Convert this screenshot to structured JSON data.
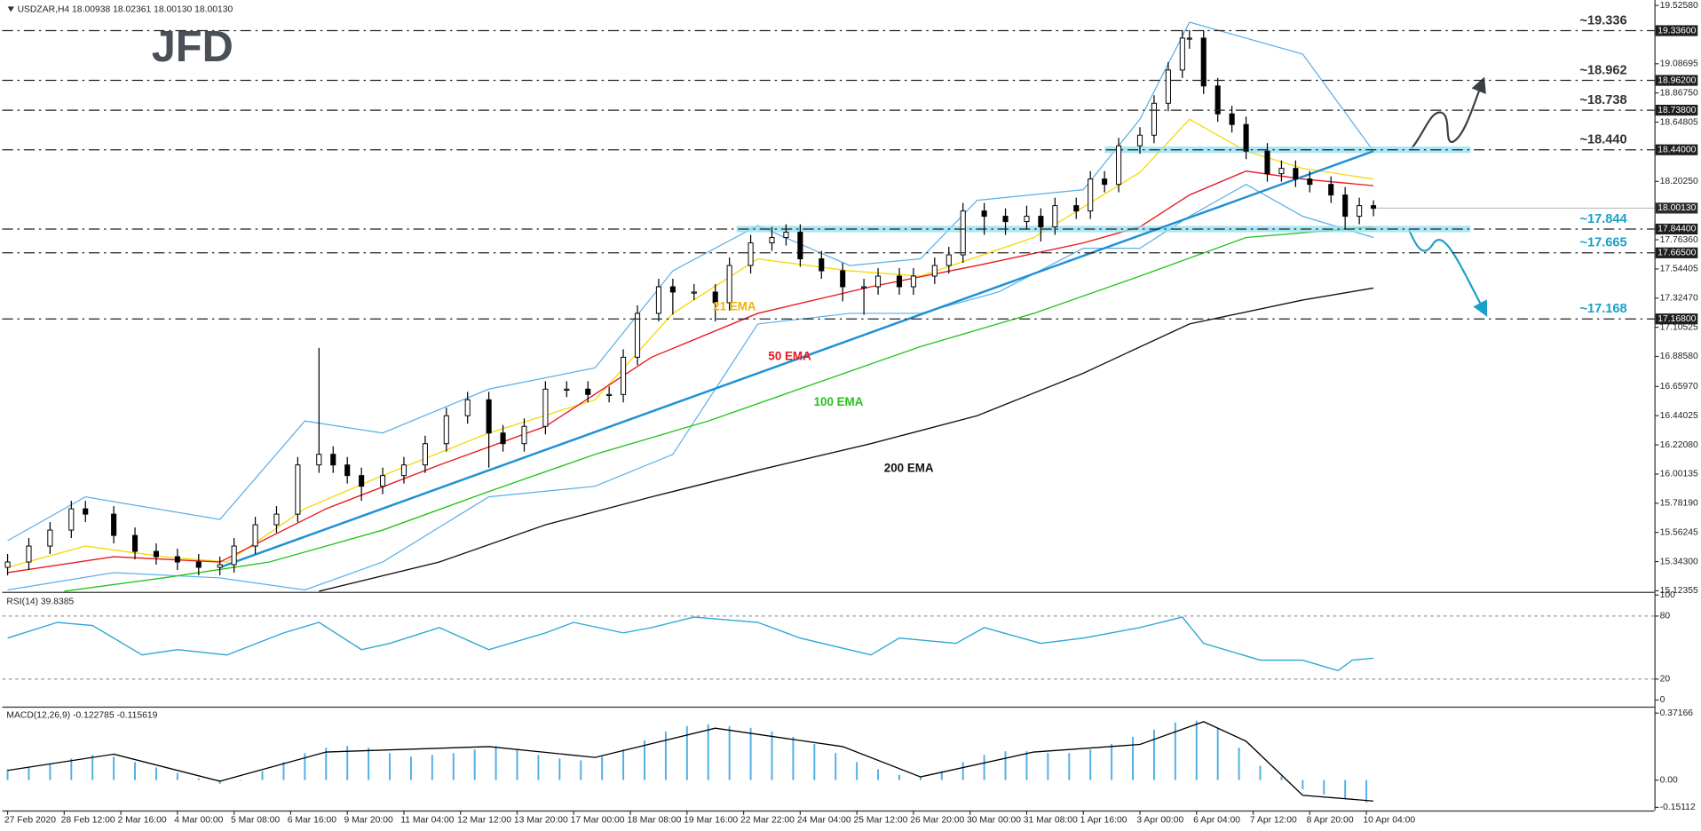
{
  "logo": "JFD",
  "chart_data": [
    {
      "type": "candlestick",
      "title": "USDZAR,H4  18.00938 18.02361 18.00130 18.00130",
      "up_color": "#ffffff",
      "down_color": "#000000",
      "xlim": [
        -0.76,
        232.7
      ],
      "ylim": [
        15.12355,
        19.5258
      ],
      "yticks": [
        {
          "value": 19.5258,
          "label": "19.52580"
        },
        {
          "value": 19.08695,
          "label": "19.08695"
        },
        {
          "value": 18.8675,
          "label": "18.86750"
        },
        {
          "value": 18.64805,
          "label": "18.64805"
        },
        {
          "value": 18.2025,
          "label": "18.20250"
        },
        {
          "value": 17.7636,
          "label": "17.76360"
        },
        {
          "value": 17.54405,
          "label": "17.54405"
        },
        {
          "value": 17.3247,
          "label": "17.32470"
        },
        {
          "value": 17.10525,
          "label": "17.10525"
        },
        {
          "value": 16.8858,
          "label": "16.88580"
        },
        {
          "value": 16.6597,
          "label": "16.65970"
        },
        {
          "value": 16.44025,
          "label": "16.44025"
        },
        {
          "value": 16.2208,
          "label": "16.22080"
        },
        {
          "value": 16.00135,
          "label": "16.00135"
        },
        {
          "value": 15.7819,
          "label": "15.78190"
        },
        {
          "value": 15.56245,
          "label": "15.56245"
        },
        {
          "value": 15.343,
          "label": "15.34300"
        },
        {
          "value": 15.12355,
          "label": "15.12355"
        }
      ],
      "x": [
        0,
        3,
        6,
        9,
        11,
        15,
        18,
        21,
        24,
        27,
        30,
        32,
        35,
        38,
        41,
        44,
        46,
        48,
        50,
        53,
        56,
        59,
        62,
        65,
        68,
        70,
        73,
        76,
        79,
        82,
        85,
        87,
        89,
        92,
        94,
        97,
        100,
        102,
        105,
        108,
        110,
        112,
        115,
        118,
        121,
        123,
        126,
        128,
        131,
        133,
        135,
        138,
        141,
        144,
        146,
        148,
        151,
        153,
        155,
        157,
        160,
        162,
        164,
        166,
        167,
        169,
        171,
        173,
        175,
        178,
        180,
        182,
        184,
        187,
        189,
        191,
        193
      ],
      "open": [
        15.3,
        15.34,
        15.46,
        15.58,
        15.74,
        15.7,
        15.54,
        15.42,
        15.38,
        15.34,
        15.3,
        15.32,
        15.46,
        15.62,
        15.7,
        16.07,
        16.15,
        16.07,
        15.99,
        15.91,
        15.99,
        16.07,
        16.23,
        16.44,
        16.56,
        16.31,
        16.23,
        16.36,
        16.64,
        16.64,
        16.6,
        16.6,
        16.88,
        17.21,
        17.41,
        17.37,
        17.37,
        17.29,
        17.57,
        17.74,
        17.78,
        17.82,
        17.62,
        17.53,
        17.41,
        17.41,
        17.49,
        17.41,
        17.49,
        17.57,
        17.65,
        17.98,
        17.94,
        17.9,
        17.94,
        17.86,
        18.02,
        17.98,
        18.22,
        18.18,
        18.47,
        18.55,
        18.79,
        19.04,
        19.28,
        19.28,
        18.92,
        18.71,
        18.63,
        18.43,
        18.26,
        18.3,
        18.22,
        18.18,
        18.1,
        17.94,
        18.02
      ],
      "high": [
        15.4,
        15.52,
        15.64,
        15.8,
        15.8,
        15.76,
        15.6,
        15.48,
        15.44,
        15.4,
        15.38,
        15.52,
        15.68,
        15.76,
        16.13,
        16.95,
        16.21,
        16.13,
        16.05,
        16.05,
        16.13,
        16.29,
        16.5,
        16.62,
        16.62,
        16.37,
        16.42,
        16.7,
        16.7,
        16.7,
        16.66,
        16.94,
        17.27,
        17.47,
        17.47,
        17.43,
        17.43,
        17.63,
        17.8,
        17.86,
        17.88,
        17.88,
        17.68,
        17.59,
        17.47,
        17.55,
        17.55,
        17.55,
        17.63,
        17.71,
        18.04,
        18.04,
        18.0,
        18.02,
        18.0,
        18.08,
        18.08,
        18.28,
        18.28,
        18.53,
        18.61,
        18.85,
        19.1,
        19.34,
        19.34,
        19.34,
        18.98,
        18.77,
        18.69,
        18.49,
        18.36,
        18.36,
        18.28,
        18.24,
        18.16,
        18.08,
        18.06
      ],
      "low": [
        15.24,
        15.28,
        15.4,
        15.52,
        15.64,
        15.48,
        15.36,
        15.32,
        15.28,
        15.24,
        15.24,
        15.26,
        15.4,
        15.56,
        15.64,
        16.01,
        16.01,
        15.93,
        15.8,
        15.85,
        15.93,
        16.01,
        16.17,
        16.38,
        16.05,
        16.17,
        16.17,
        16.3,
        16.58,
        16.54,
        16.54,
        16.54,
        16.82,
        17.15,
        17.2,
        17.31,
        17.15,
        17.23,
        17.51,
        17.68,
        17.72,
        17.56,
        17.47,
        17.3,
        17.2,
        17.35,
        17.35,
        17.35,
        17.43,
        17.51,
        17.59,
        17.8,
        17.8,
        17.84,
        17.75,
        17.8,
        17.92,
        17.92,
        18.12,
        18.12,
        18.41,
        18.49,
        18.73,
        18.98,
        19.2,
        18.86,
        18.65,
        18.57,
        18.37,
        18.2,
        18.2,
        18.16,
        18.12,
        18.04,
        17.84,
        17.88,
        17.94
      ],
      "close": [
        15.34,
        15.46,
        15.58,
        15.74,
        15.7,
        15.54,
        15.42,
        15.38,
        15.34,
        15.3,
        15.32,
        15.46,
        15.62,
        15.7,
        16.07,
        16.15,
        16.07,
        15.99,
        15.91,
        15.99,
        16.07,
        16.23,
        16.44,
        16.56,
        16.31,
        16.23,
        16.36,
        16.64,
        16.64,
        16.6,
        16.6,
        16.88,
        17.21,
        17.41,
        17.37,
        17.37,
        17.29,
        17.57,
        17.74,
        17.78,
        17.82,
        17.62,
        17.53,
        17.41,
        17.41,
        17.49,
        17.41,
        17.49,
        17.57,
        17.65,
        17.98,
        17.94,
        17.9,
        17.94,
        17.86,
        18.02,
        17.98,
        18.22,
        18.18,
        18.47,
        18.55,
        18.79,
        19.04,
        19.28,
        19.28,
        18.92,
        18.71,
        18.63,
        18.43,
        18.26,
        18.3,
        18.22,
        18.18,
        18.1,
        17.94,
        18.02,
        18.0
      ],
      "lines": [
        {
          "name": "21 EMA",
          "color": "#f5d90a",
          "x": [
            0,
            11,
            22,
            31,
            42,
            53,
            68,
            83,
            94,
            106,
            119,
            129,
            145,
            160,
            167,
            175,
            183,
            193
          ],
          "values": [
            15.3,
            15.46,
            15.38,
            15.34,
            15.74,
            15.99,
            16.31,
            16.56,
            17.21,
            17.62,
            17.53,
            17.49,
            17.78,
            18.27,
            18.67,
            18.43,
            18.3,
            18.22
          ]
        },
        {
          "name": "50 EMA",
          "color": "#e8151b",
          "x": [
            0,
            15,
            30,
            45,
            61,
            76,
            91,
            106,
            122,
            137,
            152,
            160,
            167,
            175,
            183,
            193
          ],
          "values": [
            15.26,
            15.38,
            15.34,
            15.74,
            16.07,
            16.36,
            16.88,
            17.21,
            17.41,
            17.57,
            17.74,
            17.86,
            18.1,
            18.28,
            18.22,
            18.17
          ]
        },
        {
          "name": "100 EMA",
          "color": "#22c41a",
          "x": [
            8,
            22,
            37,
            53,
            68,
            83,
            99,
            114,
            129,
            145,
            160,
            175,
            193
          ],
          "values": [
            15.12,
            15.22,
            15.34,
            15.58,
            15.87,
            16.15,
            16.4,
            16.68,
            16.96,
            17.21,
            17.49,
            17.78,
            17.86
          ]
        },
        {
          "name": "200 EMA",
          "color": "#111111",
          "x": [
            44,
            61,
            76,
            91,
            106,
            122,
            137,
            152,
            167,
            183,
            193
          ],
          "values": [
            15.12,
            15.34,
            15.62,
            15.83,
            16.03,
            16.23,
            16.44,
            16.76,
            17.13,
            17.31,
            17.4
          ]
        }
      ],
      "bands": [
        {
          "color": "#5aaee6",
          "x": [
            0,
            11,
            30,
            42,
            53,
            68,
            83,
            94,
            106,
            119,
            129,
            137,
            152,
            160,
            167,
            183,
            193
          ],
          "values": [
            15.5,
            15.83,
            15.66,
            16.4,
            16.31,
            16.64,
            16.8,
            17.53,
            17.87,
            17.57,
            17.62,
            18.06,
            18.14,
            18.67,
            19.4,
            19.16,
            18.43
          ]
        },
        {
          "color": "#5aaee6",
          "x": [
            0,
            15,
            30,
            42,
            53,
            68,
            83,
            94,
            106,
            119,
            129,
            140,
            152,
            160,
            167,
            175,
            183,
            193
          ],
          "values": [
            15.13,
            15.26,
            15.22,
            15.13,
            15.34,
            15.83,
            15.91,
            16.15,
            17.13,
            17.21,
            17.21,
            17.37,
            17.7,
            17.7,
            17.94,
            18.18,
            17.94,
            17.78
          ]
        }
      ],
      "trendline": {
        "color": "#1e90d6",
        "x": [
          30,
          193
        ],
        "values": [
          15.3,
          18.43
        ]
      },
      "levels": [
        {
          "value": 19.336,
          "label": "~19.336",
          "box": "19.33600",
          "color": "#333333"
        },
        {
          "value": 18.962,
          "label": "~18.962",
          "box": "18.96200",
          "color": "#333333"
        },
        {
          "value": 18.738,
          "label": "~18.738",
          "box": "18.73800",
          "color": "#333333"
        },
        {
          "value": 18.44,
          "label": "~18.440",
          "box": "18.44000",
          "color": "#333333",
          "zone_from": 155
        },
        {
          "value": 17.844,
          "label": "~17.844",
          "box": "17.84400",
          "color": "#1ca0c8",
          "zone_from": 103
        },
        {
          "value": 17.665,
          "label": "~17.665",
          "box": "17.66500",
          "color": "#1ca0c8"
        },
        {
          "value": 17.168,
          "label": "~17.168",
          "box": "17.16800",
          "color": "#1ca0c8"
        }
      ],
      "last": {
        "value": 18.0013,
        "label": "18.00130"
      }
    },
    {
      "type": "line",
      "title": "RSI(14) 39.8385",
      "color": "#2aa6d2",
      "xlim": [
        -0.76,
        232.7
      ],
      "ylim": [
        -5.2,
        101
      ],
      "yticks": [
        100,
        80,
        20,
        0
      ],
      "levels": [
        80,
        20
      ],
      "x": [
        0,
        7,
        12,
        19,
        24,
        31,
        39,
        44,
        50,
        54,
        61,
        68,
        76,
        80,
        87,
        91,
        97,
        106,
        112,
        122,
        126,
        134,
        138,
        146,
        152,
        160,
        166,
        169,
        172,
        177,
        183,
        188,
        190,
        193
      ],
      "values": [
        59,
        74,
        71,
        43,
        48,
        43,
        64,
        74,
        48,
        54,
        69,
        48,
        64,
        74,
        64,
        69,
        79,
        74,
        59,
        43,
        59,
        54,
        69,
        54,
        59,
        69,
        79,
        54,
        48,
        38,
        38,
        28,
        38,
        39.8385
      ]
    },
    {
      "type": "bar",
      "title": "MACD(12,26,9) -0.122785 -0.115619",
      "color": "#4fb0e4",
      "xlim": [
        -0.76,
        232.7
      ],
      "ylim": [
        -0.162,
        0.396
      ],
      "yticks": [
        0.37166,
        {
          "value": 0,
          "label": "0.00"
        },
        -0.15112
      ],
      "xticks": [
        {
          "value": 0,
          "label": "27 Feb 2020"
        },
        {
          "value": 8,
          "label": "28 Feb 12:00"
        },
        {
          "value": 16,
          "label": "2 Mar 16:00"
        },
        {
          "value": 24,
          "label": "4 Mar 00:00"
        },
        {
          "value": 32,
          "label": "5 Mar 08:00"
        },
        {
          "value": 40,
          "label": "6 Mar 16:00"
        },
        {
          "value": 48,
          "label": "9 Mar 20:00"
        },
        {
          "value": 56,
          "label": "11 Mar 04:00"
        },
        {
          "value": 64,
          "label": "12 Mar 12:00"
        },
        {
          "value": 72,
          "label": "13 Mar 20:00"
        },
        {
          "value": 80,
          "label": "17 Mar 00:00"
        },
        {
          "value": 88,
          "label": "18 Mar 08:00"
        },
        {
          "value": 96,
          "label": "19 Mar 16:00"
        },
        {
          "value": 104,
          "label": "22 Mar 22:00"
        },
        {
          "value": 112,
          "label": "24 Mar 04:00"
        },
        {
          "value": 120,
          "label": "25 Mar 12:00"
        },
        {
          "value": 128,
          "label": "26 Mar 20:00"
        },
        {
          "value": 136,
          "label": "30 Mar 00:00"
        },
        {
          "value": 144,
          "label": "31 Mar 08:00"
        },
        {
          "value": 152,
          "label": "1 Apr 16:00"
        },
        {
          "value": 160,
          "label": "3 Apr 00:00"
        },
        {
          "value": 168,
          "label": "6 Apr 04:00"
        },
        {
          "value": 176,
          "label": "7 Apr 12:00"
        },
        {
          "value": 184,
          "label": "8 Apr 20:00"
        },
        {
          "value": 192,
          "label": "10 Apr 04:00"
        }
      ],
      "x": [
        0,
        3,
        6,
        9,
        12,
        15,
        18,
        21,
        24,
        27,
        30,
        33,
        36,
        39,
        42,
        45,
        48,
        51,
        54,
        57,
        60,
        63,
        66,
        69,
        72,
        75,
        78,
        81,
        84,
        87,
        90,
        93,
        96,
        99,
        102,
        105,
        108,
        111,
        114,
        117,
        120,
        123,
        126,
        129,
        132,
        135,
        138,
        141,
        144,
        147,
        150,
        153,
        156,
        159,
        162,
        165,
        168,
        171,
        174,
        177,
        180,
        183,
        186,
        189,
        192
      ],
      "values": [
        0.06,
        0.07,
        0.09,
        0.12,
        0.14,
        0.13,
        0.1,
        0.07,
        0.04,
        0.01,
        -0.02,
        0,
        0.05,
        0.1,
        0.15,
        0.18,
        0.19,
        0.18,
        0.15,
        0.13,
        0.14,
        0.15,
        0.17,
        0.19,
        0.17,
        0.14,
        0.12,
        0.11,
        0.13,
        0.17,
        0.22,
        0.27,
        0.3,
        0.31,
        0.3,
        0.29,
        0.27,
        0.24,
        0.2,
        0.15,
        0.1,
        0.06,
        0.03,
        0.02,
        0.05,
        0.1,
        0.14,
        0.16,
        0.16,
        0.15,
        0.15,
        0.17,
        0.2,
        0.24,
        0.28,
        0.32,
        0.33,
        0.29,
        0.18,
        0.08,
        0.02,
        -0.05,
        -0.08,
        -0.1,
        -0.122785
      ],
      "signal": {
        "color": "#000000",
        "x": [
          0,
          15,
          30,
          45,
          68,
          83,
          100,
          118,
          129,
          145,
          160,
          169,
          175,
          183,
          193
        ],
        "values": [
          0.054,
          0.144,
          -0.006,
          0.156,
          0.186,
          0.126,
          0.288,
          0.186,
          0.018,
          0.156,
          0.198,
          0.324,
          0.216,
          -0.084,
          -0.115619
        ]
      }
    }
  ]
}
